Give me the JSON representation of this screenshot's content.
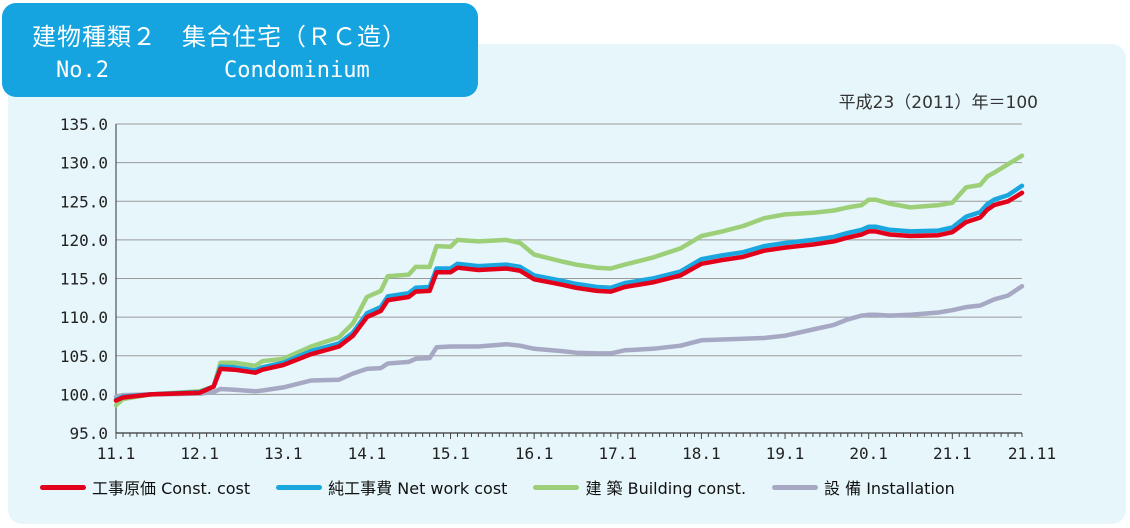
{
  "header": {
    "title_line1": "建物種類２　集合住宅（ＲＣ造）",
    "title_no": "No.2",
    "title_en": "Condominium"
  },
  "base_note": "平成23（2011）年＝100",
  "chart_data": {
    "type": "line",
    "x_tick_labels": [
      "11.1",
      "12.1",
      "13.1",
      "14.1",
      "15.1",
      "16.1",
      "17.1",
      "18.1",
      "19.1",
      "20.1",
      "21.1",
      "21.11"
    ],
    "x_range": [
      "2011-01",
      "2021-11"
    ],
    "ylim": [
      95.0,
      135.0
    ],
    "y_tick_labels": [
      "135.0",
      "130.0",
      "125.0",
      "120.0",
      "115.0",
      "110.0",
      "105.0",
      "100.0",
      "95.0"
    ],
    "y_ticks": [
      135,
      130,
      125,
      120,
      115,
      110,
      105,
      100,
      95
    ],
    "grid": "horizontal",
    "legend_position": "bottom",
    "series": [
      {
        "name": "工事原価 Const. cost",
        "color": "#e3001b",
        "points": [
          [
            "2011-01",
            99.2
          ],
          [
            "2011-02",
            99.6
          ],
          [
            "2011-06",
            100.0
          ],
          [
            "2012-01",
            100.2
          ],
          [
            "2012-03",
            101.0
          ],
          [
            "2012-04",
            103.3
          ],
          [
            "2012-06",
            103.2
          ],
          [
            "2012-09",
            102.8
          ],
          [
            "2012-10",
            103.2
          ],
          [
            "2013-01",
            103.8
          ],
          [
            "2013-05",
            105.2
          ],
          [
            "2013-09",
            106.2
          ],
          [
            "2013-11",
            107.6
          ],
          [
            "2014-01",
            110.0
          ],
          [
            "2014-03",
            110.8
          ],
          [
            "2014-04",
            112.2
          ],
          [
            "2014-07",
            112.6
          ],
          [
            "2014-08",
            113.3
          ],
          [
            "2014-10",
            113.4
          ],
          [
            "2014-11",
            115.8
          ],
          [
            "2015-01",
            115.8
          ],
          [
            "2015-02",
            116.4
          ],
          [
            "2015-05",
            116.1
          ],
          [
            "2015-09",
            116.3
          ],
          [
            "2015-11",
            116.0
          ],
          [
            "2016-01",
            114.9
          ],
          [
            "2016-05",
            114.2
          ],
          [
            "2016-07",
            113.8
          ],
          [
            "2016-10",
            113.4
          ],
          [
            "2016-12",
            113.3
          ],
          [
            "2017-02",
            113.9
          ],
          [
            "2017-06",
            114.5
          ],
          [
            "2017-10",
            115.4
          ],
          [
            "2018-01",
            116.9
          ],
          [
            "2018-04",
            117.4
          ],
          [
            "2018-07",
            117.8
          ],
          [
            "2018-10",
            118.6
          ],
          [
            "2019-01",
            119.0
          ],
          [
            "2019-05",
            119.4
          ],
          [
            "2019-08",
            119.8
          ],
          [
            "2019-10",
            120.3
          ],
          [
            "2019-12",
            120.7
          ],
          [
            "2020-01",
            121.1
          ],
          [
            "2020-02",
            121.1
          ],
          [
            "2020-04",
            120.7
          ],
          [
            "2020-07",
            120.5
          ],
          [
            "2020-11",
            120.6
          ],
          [
            "2021-01",
            121.0
          ],
          [
            "2021-03",
            122.3
          ],
          [
            "2021-05",
            122.9
          ],
          [
            "2021-06",
            123.9
          ],
          [
            "2021-07",
            124.5
          ],
          [
            "2021-09",
            125.0
          ],
          [
            "2021-11",
            126.1
          ]
        ]
      },
      {
        "name": "純工事費 Net work cost",
        "color": "#1aa7e0",
        "points": [
          [
            "2011-01",
            99.3
          ],
          [
            "2011-02",
            99.7
          ],
          [
            "2011-06",
            100.0
          ],
          [
            "2012-01",
            100.3
          ],
          [
            "2012-03",
            101.0
          ],
          [
            "2012-04",
            103.6
          ],
          [
            "2012-06",
            103.5
          ],
          [
            "2012-09",
            103.1
          ],
          [
            "2012-10",
            103.5
          ],
          [
            "2013-01",
            104.1
          ],
          [
            "2013-05",
            105.6
          ],
          [
            "2013-09",
            106.6
          ],
          [
            "2013-11",
            108.0
          ],
          [
            "2014-01",
            110.5
          ],
          [
            "2014-03",
            111.3
          ],
          [
            "2014-04",
            112.7
          ],
          [
            "2014-07",
            113.1
          ],
          [
            "2014-08",
            113.8
          ],
          [
            "2014-10",
            113.9
          ],
          [
            "2014-11",
            116.3
          ],
          [
            "2015-01",
            116.3
          ],
          [
            "2015-02",
            116.9
          ],
          [
            "2015-05",
            116.6
          ],
          [
            "2015-09",
            116.8
          ],
          [
            "2015-11",
            116.5
          ],
          [
            "2016-01",
            115.4
          ],
          [
            "2016-05",
            114.7
          ],
          [
            "2016-07",
            114.3
          ],
          [
            "2016-10",
            113.9
          ],
          [
            "2016-12",
            113.8
          ],
          [
            "2017-02",
            114.4
          ],
          [
            "2017-06",
            115.0
          ],
          [
            "2017-10",
            115.9
          ],
          [
            "2018-01",
            117.5
          ],
          [
            "2018-04",
            118.0
          ],
          [
            "2018-07",
            118.4
          ],
          [
            "2018-10",
            119.2
          ],
          [
            "2019-01",
            119.6
          ],
          [
            "2019-05",
            120.0
          ],
          [
            "2019-08",
            120.4
          ],
          [
            "2019-10",
            120.9
          ],
          [
            "2019-12",
            121.3
          ],
          [
            "2020-01",
            121.7
          ],
          [
            "2020-02",
            121.7
          ],
          [
            "2020-04",
            121.3
          ],
          [
            "2020-07",
            121.1
          ],
          [
            "2020-11",
            121.2
          ],
          [
            "2021-01",
            121.6
          ],
          [
            "2021-03",
            123.0
          ],
          [
            "2021-05",
            123.6
          ],
          [
            "2021-06",
            124.6
          ],
          [
            "2021-07",
            125.2
          ],
          [
            "2021-09",
            125.8
          ],
          [
            "2021-11",
            127.0
          ]
        ]
      },
      {
        "name": "建 築 Building const.",
        "color": "#9ccf78",
        "points": [
          [
            "2011-01",
            98.6
          ],
          [
            "2011-02",
            99.4
          ],
          [
            "2011-06",
            100.0
          ],
          [
            "2012-01",
            100.4
          ],
          [
            "2012-03",
            101.0
          ],
          [
            "2012-04",
            104.1
          ],
          [
            "2012-06",
            104.1
          ],
          [
            "2012-09",
            103.7
          ],
          [
            "2012-10",
            104.3
          ],
          [
            "2013-01",
            104.6
          ],
          [
            "2013-05",
            106.2
          ],
          [
            "2013-09",
            107.4
          ],
          [
            "2013-11",
            109.2
          ],
          [
            "2014-01",
            112.6
          ],
          [
            "2014-03",
            113.4
          ],
          [
            "2014-04",
            115.3
          ],
          [
            "2014-07",
            115.5
          ],
          [
            "2014-08",
            116.5
          ],
          [
            "2014-10",
            116.5
          ],
          [
            "2014-11",
            119.2
          ],
          [
            "2015-01",
            119.1
          ],
          [
            "2015-02",
            120.0
          ],
          [
            "2015-05",
            119.8
          ],
          [
            "2015-09",
            120.0
          ],
          [
            "2015-11",
            119.6
          ],
          [
            "2016-01",
            118.1
          ],
          [
            "2016-05",
            117.2
          ],
          [
            "2016-07",
            116.8
          ],
          [
            "2016-10",
            116.4
          ],
          [
            "2016-12",
            116.3
          ],
          [
            "2017-02",
            116.8
          ],
          [
            "2017-06",
            117.7
          ],
          [
            "2017-10",
            118.9
          ],
          [
            "2018-01",
            120.5
          ],
          [
            "2018-04",
            121.1
          ],
          [
            "2018-07",
            121.8
          ],
          [
            "2018-10",
            122.8
          ],
          [
            "2019-01",
            123.3
          ],
          [
            "2019-05",
            123.5
          ],
          [
            "2019-08",
            123.8
          ],
          [
            "2019-10",
            124.2
          ],
          [
            "2019-12",
            124.5
          ],
          [
            "2020-01",
            125.2
          ],
          [
            "2020-02",
            125.2
          ],
          [
            "2020-04",
            124.7
          ],
          [
            "2020-07",
            124.2
          ],
          [
            "2020-11",
            124.5
          ],
          [
            "2021-01",
            124.8
          ],
          [
            "2021-03",
            126.8
          ],
          [
            "2021-05",
            127.1
          ],
          [
            "2021-06",
            128.2
          ],
          [
            "2021-07",
            128.7
          ],
          [
            "2021-09",
            129.8
          ],
          [
            "2021-11",
            130.9
          ]
        ]
      },
      {
        "name": "設 備 Installation",
        "color": "#a7a9c4",
        "points": [
          [
            "2011-01",
            99.7
          ],
          [
            "2011-02",
            99.9
          ],
          [
            "2011-06",
            100.0
          ],
          [
            "2012-01",
            100.1
          ],
          [
            "2012-03",
            100.3
          ],
          [
            "2012-04",
            100.7
          ],
          [
            "2012-06",
            100.6
          ],
          [
            "2012-09",
            100.4
          ],
          [
            "2012-10",
            100.5
          ],
          [
            "2013-01",
            100.9
          ],
          [
            "2013-05",
            101.8
          ],
          [
            "2013-09",
            101.9
          ],
          [
            "2013-11",
            102.7
          ],
          [
            "2014-01",
            103.3
          ],
          [
            "2014-03",
            103.4
          ],
          [
            "2014-04",
            104.0
          ],
          [
            "2014-07",
            104.2
          ],
          [
            "2014-08",
            104.6
          ],
          [
            "2014-10",
            104.7
          ],
          [
            "2014-11",
            106.1
          ],
          [
            "2015-01",
            106.2
          ],
          [
            "2015-02",
            106.2
          ],
          [
            "2015-05",
            106.2
          ],
          [
            "2015-09",
            106.5
          ],
          [
            "2015-11",
            106.3
          ],
          [
            "2016-01",
            105.9
          ],
          [
            "2016-05",
            105.6
          ],
          [
            "2016-07",
            105.4
          ],
          [
            "2016-10",
            105.3
          ],
          [
            "2016-12",
            105.3
          ],
          [
            "2017-02",
            105.7
          ],
          [
            "2017-06",
            105.9
          ],
          [
            "2017-10",
            106.3
          ],
          [
            "2018-01",
            107.0
          ],
          [
            "2018-04",
            107.1
          ],
          [
            "2018-07",
            107.2
          ],
          [
            "2018-10",
            107.3
          ],
          [
            "2019-01",
            107.6
          ],
          [
            "2019-05",
            108.4
          ],
          [
            "2019-08",
            109.0
          ],
          [
            "2019-10",
            109.7
          ],
          [
            "2019-12",
            110.2
          ],
          [
            "2020-01",
            110.3
          ],
          [
            "2020-02",
            110.3
          ],
          [
            "2020-04",
            110.2
          ],
          [
            "2020-07",
            110.3
          ],
          [
            "2020-11",
            110.6
          ],
          [
            "2021-01",
            110.9
          ],
          [
            "2021-03",
            111.3
          ],
          [
            "2021-05",
            111.5
          ],
          [
            "2021-06",
            111.9
          ],
          [
            "2021-07",
            112.3
          ],
          [
            "2021-09",
            112.8
          ],
          [
            "2021-11",
            114.0
          ]
        ]
      }
    ]
  }
}
